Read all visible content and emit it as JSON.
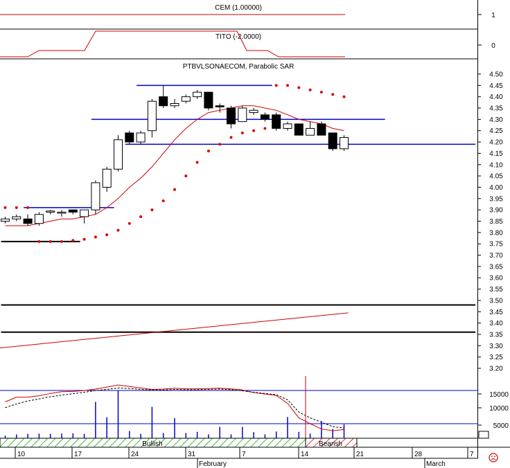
{
  "colors": {
    "candle_up": "#ffffff",
    "candle_down": "#000000",
    "sma_line": "#cc0000",
    "sar_dots": "#e00000",
    "trend_lines": "#0000cc",
    "support_lines": "#000000",
    "indicator_line": "#cc0000",
    "volume_bars": "#0000cc",
    "bullish_hatch": "#00a000",
    "bearish_hatch": "#cc0000",
    "grid": "#000000"
  },
  "panels": {
    "cem": {
      "label": "CEM (1.00000)",
      "tick": "1"
    },
    "tito": {
      "label": "TITO (-2.0000)",
      "tick": "0"
    },
    "price": {
      "label": "PTBVLSONAECOM, Parabolic SAR"
    },
    "volume": {
      "ticks": [
        "15000",
        "10000",
        "5000"
      ]
    },
    "status": {
      "bullish_label": "Bullish",
      "bearish_label": "Bearish"
    },
    "sentiment_icon": "frown-face-icon"
  },
  "chart_data": {
    "type": "candlestick",
    "title": "PTBVLSONAECOM, Parabolic SAR",
    "price_axis": {
      "range": [
        3.125,
        4.55
      ],
      "ticks": [
        "4.50",
        "4.45",
        "4.40",
        "4.35",
        "4.30",
        "4.25",
        "4.20",
        "4.15",
        "4.10",
        "4.05",
        "4.00",
        "3.95",
        "3.90",
        "3.85",
        "3.80",
        "3.75",
        "3.70",
        "3.65",
        "3.60",
        "3.55",
        "3.50",
        "3.45",
        "3.40",
        "3.35",
        "3.30",
        "3.25",
        "3.20"
      ]
    },
    "x_axis": {
      "day_ticks": [
        "10",
        "17",
        "24",
        "31",
        "7",
        "14",
        "21",
        "28",
        "7"
      ],
      "month_labels": [
        "February",
        "March"
      ]
    },
    "candles": [
      {
        "o": 3.85,
        "h": 3.87,
        "l": 3.84,
        "c": 3.86
      },
      {
        "o": 3.86,
        "h": 3.88,
        "l": 3.85,
        "c": 3.87
      },
      {
        "o": 3.86,
        "h": 3.88,
        "l": 3.83,
        "c": 3.84
      },
      {
        "o": 3.84,
        "h": 3.89,
        "l": 3.83,
        "c": 3.88
      },
      {
        "o": 3.89,
        "h": 3.9,
        "l": 3.88,
        "c": 3.895
      },
      {
        "o": 3.89,
        "h": 3.9,
        "l": 3.87,
        "c": 3.89
      },
      {
        "o": 3.9,
        "h": 3.9,
        "l": 3.88,
        "c": 3.89
      },
      {
        "o": 3.87,
        "h": 3.9,
        "l": 3.84,
        "c": 3.9
      },
      {
        "o": 3.9,
        "h": 4.03,
        "l": 3.88,
        "c": 4.02
      },
      {
        "o": 4.0,
        "h": 4.09,
        "l": 3.98,
        "c": 4.08
      },
      {
        "o": 4.08,
        "h": 4.23,
        "l": 4.07,
        "c": 4.21
      },
      {
        "o": 4.24,
        "h": 4.25,
        "l": 4.19,
        "c": 4.2
      },
      {
        "o": 4.2,
        "h": 4.25,
        "l": 4.19,
        "c": 4.24
      },
      {
        "o": 4.25,
        "h": 4.39,
        "l": 4.22,
        "c": 4.38
      },
      {
        "o": 4.4,
        "h": 4.45,
        "l": 4.35,
        "c": 4.36
      },
      {
        "o": 4.36,
        "h": 4.39,
        "l": 4.35,
        "c": 4.37
      },
      {
        "o": 4.38,
        "h": 4.41,
        "l": 4.37,
        "c": 4.4
      },
      {
        "o": 4.4,
        "h": 4.43,
        "l": 4.39,
        "c": 4.42
      },
      {
        "o": 4.42,
        "h": 4.42,
        "l": 4.34,
        "c": 4.35
      },
      {
        "o": 4.36,
        "h": 4.37,
        "l": 4.33,
        "c": 4.355
      },
      {
        "o": 4.35,
        "h": 4.36,
        "l": 4.26,
        "c": 4.28
      },
      {
        "o": 4.29,
        "h": 4.36,
        "l": 4.29,
        "c": 4.35
      },
      {
        "o": 4.33,
        "h": 4.35,
        "l": 4.32,
        "c": 4.34
      },
      {
        "o": 4.32,
        "h": 4.33,
        "l": 4.29,
        "c": 4.3
      },
      {
        "o": 4.32,
        "h": 4.33,
        "l": 4.25,
        "c": 4.26
      },
      {
        "o": 4.26,
        "h": 4.29,
        "l": 4.25,
        "c": 4.28
      },
      {
        "o": 4.28,
        "h": 4.28,
        "l": 4.23,
        "c": 4.23
      },
      {
        "o": 4.23,
        "h": 4.29,
        "l": 4.23,
        "c": 4.26
      },
      {
        "o": 4.28,
        "h": 4.29,
        "l": 4.23,
        "c": 4.23
      },
      {
        "o": 4.24,
        "h": 4.24,
        "l": 4.16,
        "c": 4.17
      },
      {
        "o": 4.17,
        "h": 4.23,
        "l": 4.16,
        "c": 4.22
      }
    ],
    "sma": [
      3.83,
      3.83,
      3.83,
      3.84,
      3.85,
      3.86,
      3.86,
      3.87,
      3.88,
      3.91,
      3.95,
      4.0,
      4.04,
      4.09,
      4.15,
      4.21,
      4.26,
      4.3,
      4.33,
      4.34,
      4.35,
      4.36,
      4.36,
      4.35,
      4.34,
      4.32,
      4.3,
      4.29,
      4.28,
      4.26,
      4.25
    ],
    "sar": [
      3.91,
      3.91,
      3.91,
      3.76,
      3.76,
      3.76,
      3.765,
      3.77,
      3.78,
      3.79,
      3.81,
      3.84,
      3.87,
      3.9,
      3.94,
      3.99,
      4.05,
      4.11,
      4.16,
      4.19,
      4.22,
      4.24,
      4.25,
      4.26,
      4.45,
      4.45,
      4.44,
      4.43,
      4.42,
      4.41,
      4.4
    ],
    "horizontal_lines": [
      {
        "color": "blue",
        "from": 2,
        "to": 10,
        "y": 3.91
      },
      {
        "color": "black",
        "from": 0,
        "to": 7,
        "y": 3.76
      },
      {
        "color": "blue",
        "from": 12,
        "to": 24,
        "y": 4.45
      },
      {
        "color": "blue",
        "from": 8,
        "to": 34,
        "y": 4.3
      },
      {
        "color": "blue",
        "from": 11,
        "to": 42,
        "y": 4.19
      },
      {
        "color": "black",
        "from": 0,
        "to": 42,
        "y": 3.48
      },
      {
        "color": "black",
        "from": 0,
        "to": 42,
        "y": 3.36
      }
    ],
    "long_trend_line": {
      "from": [
        0,
        3.29
      ],
      "to": [
        30,
        3.445
      ]
    },
    "volume": [
      900,
      1300,
      1500,
      1600,
      1500,
      1600,
      1700,
      1500,
      12500,
      7200,
      16500,
      2500,
      1500,
      10800,
      1800,
      6900,
      1800,
      2200,
      1300,
      3900,
      1300,
      3900,
      2100,
      1300,
      2300,
      7300,
      2200,
      1600,
      5900,
      3200,
      4800
    ],
    "volume_ma_solid": [
      12500,
      14100,
      14100,
      14600,
      15400,
      16000,
      16100,
      16400,
      16900,
      17600,
      18300,
      17800,
      17300,
      16800,
      16900,
      17200,
      17000,
      17000,
      17100,
      17200,
      17000,
      16600,
      15700,
      15200,
      14700,
      12000,
      7000,
      5000,
      3200,
      2600,
      3000
    ],
    "volume_ma_dashed": [
      10500,
      11800,
      12800,
      13500,
      14300,
      14800,
      15300,
      15800,
      16400,
      16800,
      17300,
      17100,
      16800,
      16600,
      16600,
      16800,
      16700,
      16700,
      16800,
      16900,
      16700,
      16300,
      15800,
      15400,
      15000,
      13200,
      9000,
      7000,
      5500,
      4000,
      3500
    ]
  }
}
